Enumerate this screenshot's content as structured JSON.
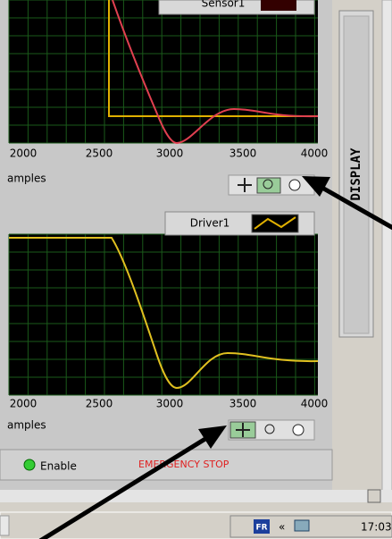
{
  "top_plot": {
    "legend": "Sensor1",
    "x_ticks": [
      "2000",
      "2500",
      "3000",
      "3500",
      "4000"
    ],
    "x_label": "amples"
  },
  "bottom_plot": {
    "legend": "Driver1",
    "x_ticks": [
      "2000",
      "2500",
      "3000",
      "3500",
      "4000"
    ],
    "x_label": "amples"
  },
  "controls": {
    "enable": "Enable",
    "stop": "EMERGENCY STOP"
  },
  "tab": "DISPLAY",
  "taskbar": {
    "lang": "FR",
    "chevron": "«",
    "clock": "17:03"
  }
}
